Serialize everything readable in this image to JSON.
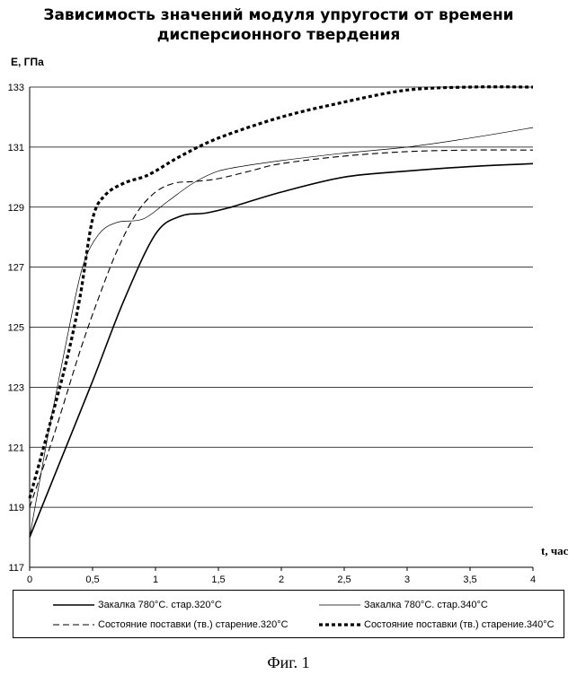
{
  "chart_data": {
    "type": "line",
    "title_line1": "Зависимость значений модуля упругости от времени",
    "title_line2": "дисперсионного твердения",
    "ylabel": "E, ГПа",
    "xlabel": "t, час",
    "xlim": [
      0,
      4
    ],
    "ylim": [
      117,
      133
    ],
    "x_ticks": [
      0,
      0.5,
      1,
      1.5,
      2,
      2.5,
      3,
      3.5,
      4
    ],
    "x_tick_labels": [
      "0",
      "0,5",
      "1",
      "1,5",
      "2",
      "2,5",
      "3",
      "3,5",
      "4"
    ],
    "y_ticks": [
      117,
      119,
      121,
      123,
      125,
      127,
      129,
      131,
      133
    ],
    "y_tick_labels": [
      "117",
      "119",
      "121",
      "123",
      "125",
      "127",
      "129",
      "131",
      "133"
    ],
    "grid": "horizontal",
    "legend_position": "bottom",
    "series": [
      {
        "name": "Закалка 780°С. стар.320°С",
        "style": "solid-thick",
        "color": "#000000",
        "points": [
          [
            0,
            118.0
          ],
          [
            0.25,
            120.6
          ],
          [
            0.5,
            123.2
          ],
          [
            0.75,
            125.9
          ],
          [
            1.0,
            128.1
          ],
          [
            1.2,
            128.7
          ],
          [
            1.4,
            128.8
          ],
          [
            1.6,
            129.0
          ],
          [
            2.0,
            129.5
          ],
          [
            2.5,
            130.0
          ],
          [
            3.0,
            130.2
          ],
          [
            3.5,
            130.35
          ],
          [
            4.0,
            130.45
          ]
        ]
      },
      {
        "name": "Закалка 780°С. стар.340°С",
        "style": "solid-thin",
        "color": "#000000",
        "points": [
          [
            0,
            118.0
          ],
          [
            0.15,
            121.5
          ],
          [
            0.3,
            124.7
          ],
          [
            0.42,
            127.0
          ],
          [
            0.55,
            128.1
          ],
          [
            0.7,
            128.5
          ],
          [
            0.9,
            128.6
          ],
          [
            1.1,
            129.2
          ],
          [
            1.3,
            129.8
          ],
          [
            1.5,
            130.2
          ],
          [
            1.75,
            130.4
          ],
          [
            2.0,
            130.55
          ],
          [
            2.5,
            130.8
          ],
          [
            3.0,
            131.0
          ],
          [
            3.5,
            131.3
          ],
          [
            4.0,
            131.65
          ]
        ]
      },
      {
        "name": "Состояние поставки (тв.) старение.320°С",
        "style": "dashed",
        "color": "#000000",
        "points": [
          [
            0,
            119.0
          ],
          [
            0.2,
            121.5
          ],
          [
            0.4,
            124.2
          ],
          [
            0.55,
            126.0
          ],
          [
            0.7,
            127.6
          ],
          [
            0.85,
            128.8
          ],
          [
            1.0,
            129.5
          ],
          [
            1.15,
            129.8
          ],
          [
            1.3,
            129.85
          ],
          [
            1.5,
            129.95
          ],
          [
            1.75,
            130.2
          ],
          [
            2.0,
            130.45
          ],
          [
            2.5,
            130.7
          ],
          [
            3.0,
            130.85
          ],
          [
            3.5,
            130.9
          ],
          [
            4.0,
            130.9
          ]
        ]
      },
      {
        "name": "Состояние поставки (тв.) старение.340°С",
        "style": "dotted-thick",
        "color": "#000000",
        "points": [
          [
            0,
            119.3
          ],
          [
            0.15,
            121.6
          ],
          [
            0.3,
            124.0
          ],
          [
            0.4,
            126.0
          ],
          [
            0.5,
            128.6
          ],
          [
            0.6,
            129.4
          ],
          [
            0.75,
            129.8
          ],
          [
            0.9,
            130.0
          ],
          [
            1.0,
            130.2
          ],
          [
            1.2,
            130.7
          ],
          [
            1.5,
            131.3
          ],
          [
            2.0,
            132.0
          ],
          [
            2.5,
            132.5
          ],
          [
            3.0,
            132.9
          ],
          [
            3.5,
            133.0
          ],
          [
            4.0,
            133.0
          ]
        ]
      }
    ]
  },
  "caption": "Фиг. 1"
}
